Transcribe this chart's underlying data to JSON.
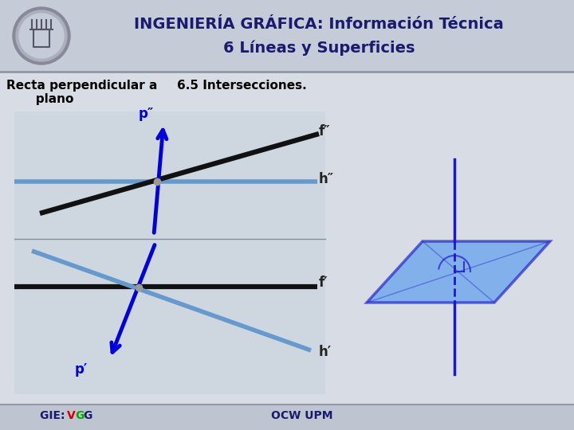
{
  "title_line1": "INGENIERÍA GRÁFICA: Información Técnica",
  "title_line2": "6 Líneas y Superficies",
  "bg_color": "#d8dde5",
  "header_bg": "#c5ccd8",
  "title_color": "#1a1a6e",
  "label_color": "#000000",
  "right_label": "6.5 Intersecciones.",
  "footer_color": "#1a1a6e",
  "footer_v_color": "#cc0000",
  "footer_g1_color": "#00aa00",
  "footer_g2_color": "#1a1a6e",
  "footer_right": "OCW UPM",
  "line_blue_dark": "#0000dd",
  "line_blue_light": "#6699cc",
  "line_black": "#111111",
  "plane_fill": "#5599ee",
  "plane_edge": "#1a1acc",
  "diag_bg": "#c5ccd8"
}
